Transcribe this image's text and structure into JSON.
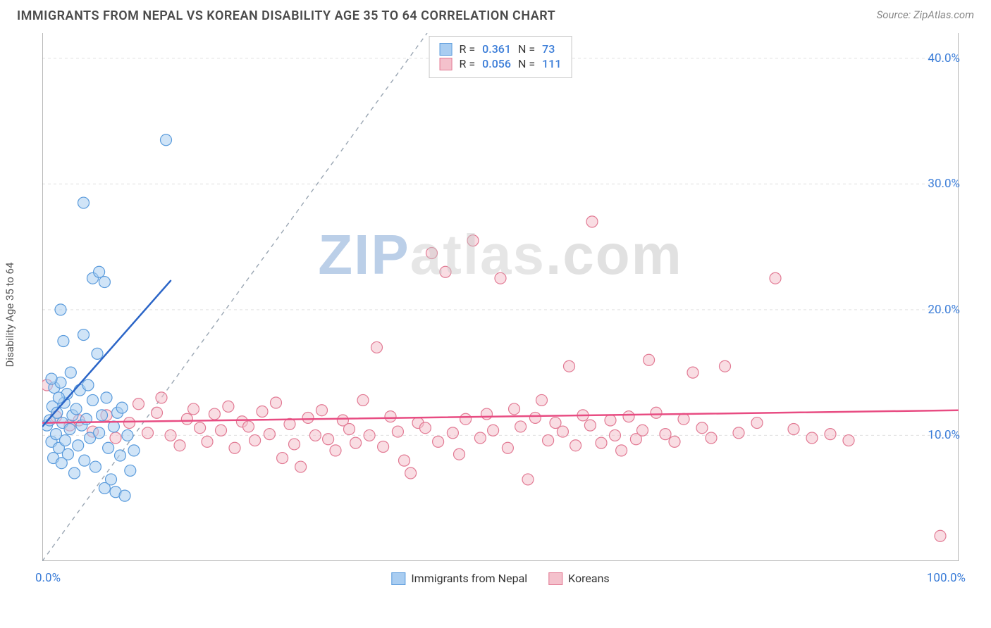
{
  "title": "IMMIGRANTS FROM NEPAL VS KOREAN DISABILITY AGE 35 TO 64 CORRELATION CHART",
  "source": "Source: ZipAtlas.com",
  "ylabel": "Disability Age 35 to 64",
  "watermark": {
    "prefix": "ZIP",
    "suffix": "atlas",
    "dotcom": ".com"
  },
  "chart": {
    "type": "scatter",
    "background_color": "#ffffff",
    "grid_color": "#e0e0e0",
    "axis_color": "#888888",
    "xlim": [
      0,
      100
    ],
    "ylim": [
      0,
      42
    ],
    "ytick_values": [
      10,
      20,
      30,
      40
    ],
    "ytick_labels": [
      "10.0%",
      "20.0%",
      "30.0%",
      "40.0%"
    ],
    "xtick_positions": [
      10,
      20,
      30,
      40,
      50,
      60,
      70,
      80,
      90
    ],
    "x_low_label": "0.0%",
    "x_high_label": "100.0%",
    "marker_radius": 8,
    "marker_opacity": 0.55,
    "reference_line": {
      "x1": 0,
      "y1": 0,
      "x2": 42,
      "y2": 42,
      "color": "#9aa6b3",
      "dash": "6,6",
      "width": 1.4
    }
  },
  "series": {
    "nepal": {
      "label": "Immigrants from Nepal",
      "color_fill": "#a9cdf1",
      "color_stroke": "#5a9bdc",
      "R": "0.361",
      "N": "73",
      "trend": {
        "x1": 0,
        "y1": 10.7,
        "x2": 14,
        "y2": 22.3,
        "color": "#2b65c7",
        "width": 2.5
      },
      "points": [
        [
          0.5,
          10.8
        ],
        [
          0.8,
          11.2
        ],
        [
          1.0,
          9.5
        ],
        [
          1.1,
          12.3
        ],
        [
          1.2,
          8.2
        ],
        [
          1.3,
          13.8
        ],
        [
          1.5,
          10.1
        ],
        [
          1.6,
          11.8
        ],
        [
          1.8,
          9.0
        ],
        [
          2.0,
          14.2
        ],
        [
          2.1,
          7.8
        ],
        [
          2.2,
          11.0
        ],
        [
          2.4,
          12.6
        ],
        [
          2.5,
          9.6
        ],
        [
          2.7,
          13.3
        ],
        [
          2.8,
          8.5
        ],
        [
          3.0,
          10.5
        ],
        [
          3.1,
          15.0
        ],
        [
          3.3,
          11.6
        ],
        [
          3.5,
          7.0
        ],
        [
          3.7,
          12.1
        ],
        [
          3.9,
          9.2
        ],
        [
          4.1,
          13.6
        ],
        [
          4.3,
          10.8
        ],
        [
          4.5,
          18.0
        ],
        [
          4.6,
          8.0
        ],
        [
          4.8,
          11.3
        ],
        [
          5.0,
          14.0
        ],
        [
          5.2,
          9.8
        ],
        [
          5.5,
          12.8
        ],
        [
          5.8,
          7.5
        ],
        [
          6.0,
          16.5
        ],
        [
          6.2,
          10.2
        ],
        [
          6.5,
          11.6
        ],
        [
          6.8,
          5.8
        ],
        [
          7.0,
          13.0
        ],
        [
          7.2,
          9.0
        ],
        [
          7.5,
          6.5
        ],
        [
          7.8,
          10.7
        ],
        [
          8.0,
          5.5
        ],
        [
          8.2,
          11.8
        ],
        [
          8.5,
          8.4
        ],
        [
          8.7,
          12.2
        ],
        [
          9.0,
          5.2
        ],
        [
          9.3,
          10.0
        ],
        [
          9.6,
          7.2
        ],
        [
          10.0,
          8.8
        ],
        [
          2.0,
          20.0
        ],
        [
          2.3,
          17.5
        ],
        [
          5.5,
          22.5
        ],
        [
          6.2,
          23.0
        ],
        [
          6.8,
          22.2
        ],
        [
          4.5,
          28.5
        ],
        [
          13.5,
          33.5
        ],
        [
          1.8,
          13.0
        ],
        [
          1.0,
          14.5
        ]
      ]
    },
    "korean": {
      "label": "Koreans",
      "color_fill": "#f4c1cc",
      "color_stroke": "#e27a94",
      "R": "0.056",
      "N": "111",
      "trend": {
        "x1": 0,
        "y1": 11.0,
        "x2": 100,
        "y2": 12.0,
        "color": "#e84c82",
        "width": 2.5
      },
      "points": [
        [
          0.5,
          14.0
        ],
        [
          1.5,
          11.5
        ],
        [
          3.0,
          10.8
        ],
        [
          4.0,
          11.2
        ],
        [
          5.5,
          10.3
        ],
        [
          7.0,
          11.6
        ],
        [
          8.0,
          9.8
        ],
        [
          9.5,
          11.0
        ],
        [
          10.5,
          12.5
        ],
        [
          11.5,
          10.2
        ],
        [
          12.5,
          11.8
        ],
        [
          13.0,
          13.0
        ],
        [
          14.0,
          10.0
        ],
        [
          15.0,
          9.2
        ],
        [
          15.8,
          11.3
        ],
        [
          16.5,
          12.1
        ],
        [
          17.2,
          10.6
        ],
        [
          18.0,
          9.5
        ],
        [
          18.8,
          11.7
        ],
        [
          19.5,
          10.4
        ],
        [
          20.3,
          12.3
        ],
        [
          21.0,
          9.0
        ],
        [
          21.8,
          11.1
        ],
        [
          22.5,
          10.7
        ],
        [
          23.2,
          9.6
        ],
        [
          24.0,
          11.9
        ],
        [
          24.8,
          10.1
        ],
        [
          25.5,
          12.6
        ],
        [
          26.2,
          8.2
        ],
        [
          27.0,
          10.9
        ],
        [
          27.5,
          9.3
        ],
        [
          28.2,
          7.5
        ],
        [
          29.0,
          11.4
        ],
        [
          29.8,
          10.0
        ],
        [
          30.5,
          12.0
        ],
        [
          31.2,
          9.7
        ],
        [
          32.0,
          8.8
        ],
        [
          32.8,
          11.2
        ],
        [
          33.5,
          10.5
        ],
        [
          34.2,
          9.4
        ],
        [
          35.0,
          12.8
        ],
        [
          35.7,
          10.0
        ],
        [
          36.5,
          17.0
        ],
        [
          37.2,
          9.1
        ],
        [
          38.0,
          11.5
        ],
        [
          38.8,
          10.3
        ],
        [
          39.5,
          8.0
        ],
        [
          40.2,
          7.0
        ],
        [
          41.0,
          11.0
        ],
        [
          41.8,
          10.6
        ],
        [
          42.5,
          24.5
        ],
        [
          43.2,
          9.5
        ],
        [
          44.0,
          23.0
        ],
        [
          44.8,
          10.2
        ],
        [
          45.5,
          8.5
        ],
        [
          46.2,
          11.3
        ],
        [
          47.0,
          25.5
        ],
        [
          47.8,
          9.8
        ],
        [
          48.5,
          11.7
        ],
        [
          49.2,
          10.4
        ],
        [
          50.0,
          22.5
        ],
        [
          50.8,
          9.0
        ],
        [
          51.5,
          12.1
        ],
        [
          52.2,
          10.7
        ],
        [
          53.0,
          6.5
        ],
        [
          53.8,
          11.4
        ],
        [
          54.5,
          12.8
        ],
        [
          55.2,
          9.6
        ],
        [
          56.0,
          11.0
        ],
        [
          56.8,
          10.3
        ],
        [
          57.5,
          15.5
        ],
        [
          58.2,
          9.2
        ],
        [
          59.0,
          11.6
        ],
        [
          59.8,
          10.8
        ],
        [
          60.0,
          27.0
        ],
        [
          61.0,
          9.4
        ],
        [
          62.0,
          11.2
        ],
        [
          62.5,
          10.0
        ],
        [
          63.2,
          8.8
        ],
        [
          64.0,
          11.5
        ],
        [
          64.8,
          9.7
        ],
        [
          65.5,
          10.4
        ],
        [
          66.2,
          16.0
        ],
        [
          67.0,
          11.8
        ],
        [
          68.0,
          10.1
        ],
        [
          69.0,
          9.5
        ],
        [
          70.0,
          11.3
        ],
        [
          71.0,
          15.0
        ],
        [
          72.0,
          10.6
        ],
        [
          73.0,
          9.8
        ],
        [
          74.5,
          15.5
        ],
        [
          76.0,
          10.2
        ],
        [
          78.0,
          11.0
        ],
        [
          80.0,
          22.5
        ],
        [
          82.0,
          10.5
        ],
        [
          84.0,
          9.8
        ],
        [
          86.0,
          10.1
        ],
        [
          88.0,
          9.6
        ],
        [
          98.0,
          2.0
        ]
      ]
    }
  },
  "legend_top": {
    "r_label": "R  = ",
    "n_label": "N  = "
  },
  "bottom_legend": {
    "group_a": "Immigrants from Nepal",
    "group_b": "Koreans"
  }
}
